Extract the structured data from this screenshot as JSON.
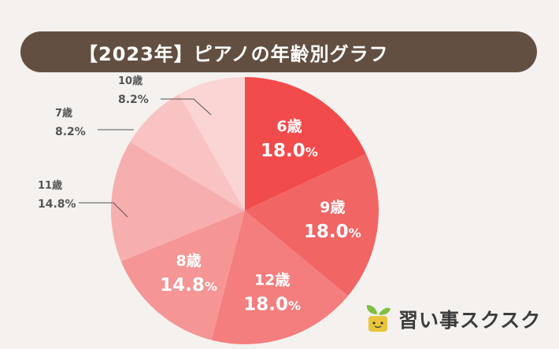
{
  "chart_data": {
    "type": "pie",
    "title": "【2023年】ピアノの年齢別グラフ",
    "slices": [
      {
        "label": "6歳",
        "value": 18.0,
        "display": "18.0",
        "color": "#f24b4b",
        "label_inside": true
      },
      {
        "label": "9歳",
        "value": 18.0,
        "display": "18.0",
        "color": "#f26565",
        "label_inside": true
      },
      {
        "label": "12歳",
        "value": 18.0,
        "display": "18.0",
        "color": "#f47d7d",
        "label_inside": true
      },
      {
        "label": "8歳",
        "value": 14.8,
        "display": "14.8",
        "color": "#f59595",
        "label_inside": true
      },
      {
        "label": "11歳",
        "value": 14.8,
        "display": "14.8",
        "color": "#f7aeae",
        "label_inside": false
      },
      {
        "label": "7歳",
        "value": 8.2,
        "display": "8.2",
        "color": "#f9c3c3",
        "label_inside": false
      },
      {
        "label": "10歳",
        "value": 8.2,
        "display": "8.2",
        "color": "#fbd4d4",
        "label_inside": false
      }
    ],
    "unit": "%"
  },
  "brand": {
    "name": "習い事スクスク",
    "colors": {
      "leaf": "#7fbf3f",
      "pot": "#e8c53a"
    }
  }
}
